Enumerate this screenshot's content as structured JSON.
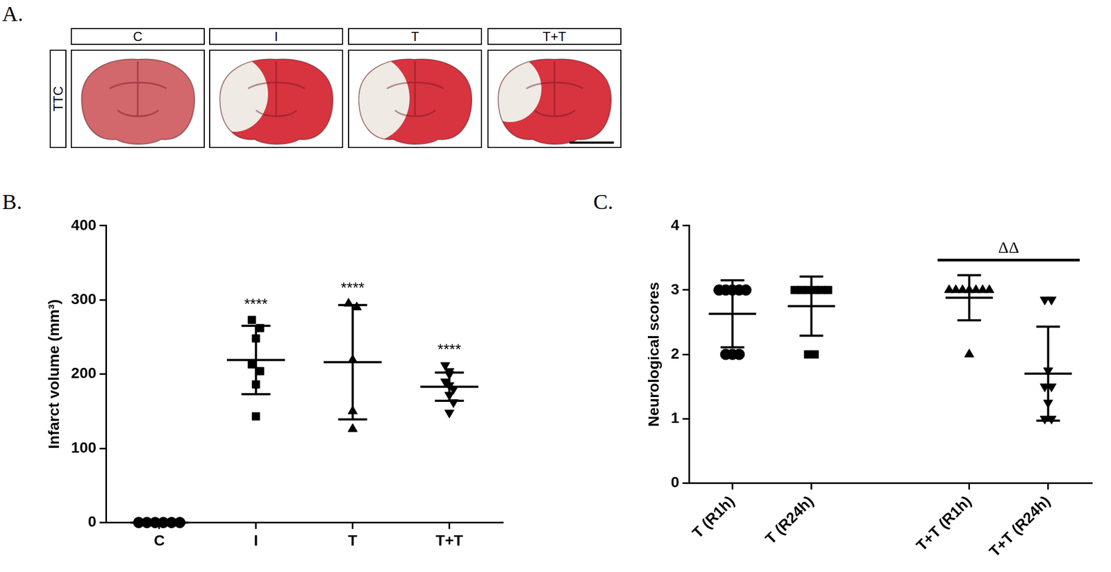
{
  "figure": {
    "panel_labels": [
      "A.",
      "B.",
      "C."
    ],
    "image_panel": {
      "row_label": "TTC",
      "column_labels": [
        "C",
        "I",
        "T",
        "T+T"
      ]
    }
  },
  "chart_data": [
    {
      "type": "scatter",
      "color": "#000000",
      "grid": false,
      "y_label": "Infarct volume (mm³)",
      "categories": [
        "C",
        "I",
        "T",
        "T+T"
      ],
      "ylim": [
        0,
        400
      ],
      "yticks": [
        0,
        100,
        200,
        300,
        400
      ],
      "groups": [
        {
          "marker": "circle",
          "values": [
            0,
            0,
            0,
            0,
            0,
            0
          ],
          "mean": 0,
          "sd": 0
        },
        {
          "marker": "square",
          "values": [
            273,
            262,
            248,
            213,
            204,
            186,
            143
          ],
          "mean": 219,
          "sd": 46
        },
        {
          "marker": "triangle",
          "values": [
            295,
            290,
            219,
            150,
            126
          ],
          "mean": 216,
          "sd": 77
        },
        {
          "marker": "triangle_down",
          "values": [
            212,
            204,
            200,
            190,
            185,
            180,
            172,
            162,
            148
          ],
          "mean": 183,
          "sd": 19
        }
      ],
      "annotations": [
        {
          "categories": [
            "I"
          ],
          "text": "****"
        },
        {
          "categories": [
            "T"
          ],
          "text": "****"
        },
        {
          "categories": [
            "T+T"
          ],
          "text": "****"
        }
      ]
    },
    {
      "type": "scatter",
      "color": "#000000",
      "grid": false,
      "y_label": "Neurological scores",
      "categories": [
        "T (R1h)",
        "T (R24h)",
        null,
        "T+T (R1h)",
        "T+T (R24h)"
      ],
      "ylim": [
        0,
        4
      ],
      "yticks": [
        0,
        1,
        2,
        3,
        4
      ],
      "groups": [
        {
          "marker": "circle",
          "values": [
            3,
            3,
            3,
            3,
            3,
            2,
            2,
            2
          ],
          "mean": 2.63,
          "sd": 0.52
        },
        {
          "marker": "square",
          "values": [
            3,
            3,
            3,
            3,
            3,
            3,
            2,
            2
          ],
          "mean": 2.75,
          "sd": 0.46
        },
        {
          "marker": null,
          "values": [],
          "mean": null,
          "sd": null
        },
        {
          "marker": "triangle",
          "values": [
            3,
            3,
            3,
            3,
            3,
            3,
            3,
            2
          ],
          "mean": 2.88,
          "sd": 0.35
        },
        {
          "marker": "triangle_down",
          "values": [
            2.85,
            2.85,
            1.75,
            1.5,
            1.5,
            1.25,
            1,
            1
          ],
          "mean": 1.7,
          "sd": 0.73
        }
      ],
      "annotations": [
        {
          "categories": [
            "T+T (R1h)",
            "T+T (R24h)"
          ],
          "text": "ΔΔ"
        }
      ]
    }
  ]
}
